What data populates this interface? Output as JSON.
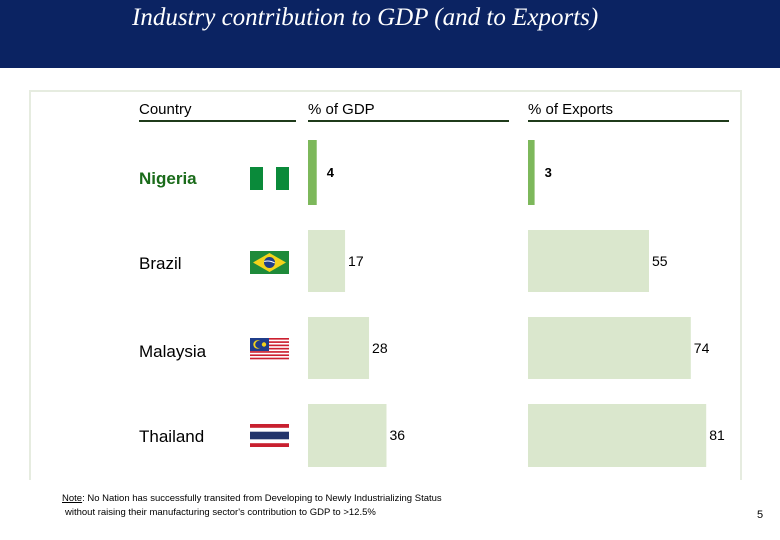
{
  "header": {
    "title": "Industry contribution to GDP (and to Exports)"
  },
  "columns": {
    "country": "Country",
    "gdp": "% of GDP",
    "exports": "% of Exports"
  },
  "countries": [
    {
      "name": "Nigeria",
      "highlight": true,
      "flag": "nigeria-flag"
    },
    {
      "name": "Brazil",
      "highlight": false,
      "flag": "brazil-flag"
    },
    {
      "name": "Malaysia",
      "highlight": false,
      "flag": "malaysia-flag"
    },
    {
      "name": "Thailand",
      "highlight": false,
      "flag": "thailand-flag"
    }
  ],
  "chart_data": {
    "type": "bar",
    "orientation": "horizontal",
    "categories": [
      "Nigeria",
      "Brazil",
      "Malaysia",
      "Thailand"
    ],
    "series": [
      {
        "values": [
          4,
          17,
          28,
          36
        ]
      },
      {
        "values": [
          3,
          55,
          74,
          81
        ]
      }
    ],
    "colors": {
      "highlight": "#7db85b",
      "default": "#dae7cd"
    }
  },
  "note": {
    "label": "Note",
    "line1": ": No Nation has successfully transited from Developing to Newly Industrializing Status",
    "line2": "without raising their manufacturing sector's contribution to GDP to >12.5%"
  },
  "page_number": "5"
}
